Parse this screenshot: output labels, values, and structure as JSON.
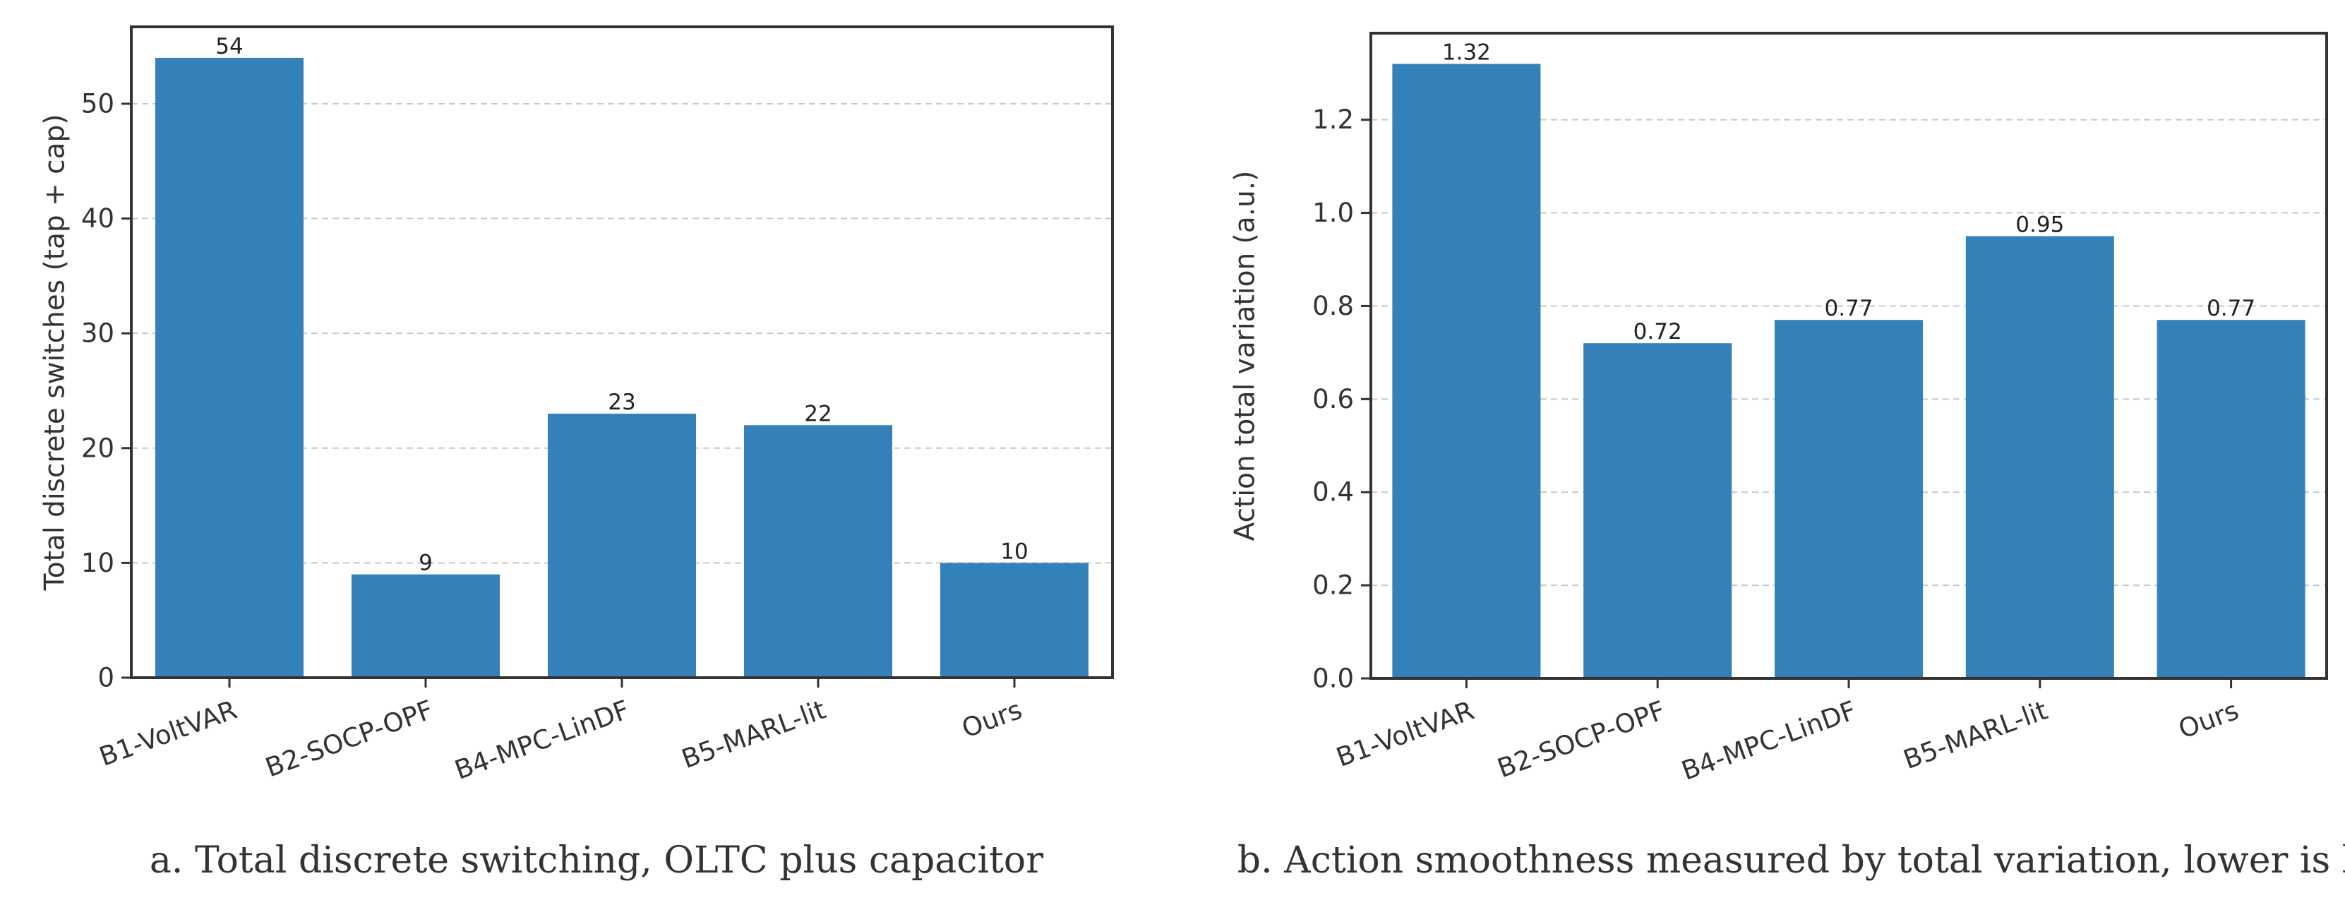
{
  "colors": {
    "bar": "#3480b9",
    "frame": "#333333",
    "grid": "#c8c8c8"
  },
  "chart_data": [
    {
      "type": "bar",
      "title": "",
      "caption": "a. Total discrete switching, OLTC plus capacitor",
      "xlabel": "",
      "ylabel": "Total discrete switches (tap + cap)",
      "categories": [
        "B1-VoltVAR",
        "B2-SOCP-OPF",
        "B4-MPC-LinDF",
        "B5-MARL-lit",
        "Ours"
      ],
      "values": [
        54,
        9,
        23,
        22,
        10
      ],
      "value_labels": [
        "54",
        "9",
        "23",
        "22",
        "10"
      ],
      "ylim": [
        0,
        56.7
      ],
      "yticks": [
        0,
        10,
        20,
        30,
        40,
        50
      ],
      "ytick_labels": [
        "0",
        "10",
        "20",
        "30",
        "40",
        "50"
      ],
      "grid": true
    },
    {
      "type": "bar",
      "title": "",
      "caption": "b. Action smoothness measured by total variation, lower is better",
      "xlabel": "",
      "ylabel": "Action total variation (a.u.)",
      "categories": [
        "B1-VoltVAR",
        "B2-SOCP-OPF",
        "B4-MPC-LinDF",
        "B5-MARL-lit",
        "Ours"
      ],
      "values": [
        1.32,
        0.72,
        0.77,
        0.95,
        0.77
      ],
      "value_labels": [
        "1.32",
        "0.72",
        "0.77",
        "0.95",
        "0.77"
      ],
      "ylim": [
        0,
        1.386
      ],
      "yticks": [
        0,
        0.2,
        0.4,
        0.6,
        0.8,
        1.0,
        1.2
      ],
      "ytick_labels": [
        "0.0",
        "0.2",
        "0.4",
        "0.6",
        "0.8",
        "1.0",
        "1.2"
      ],
      "grid": true
    }
  ]
}
